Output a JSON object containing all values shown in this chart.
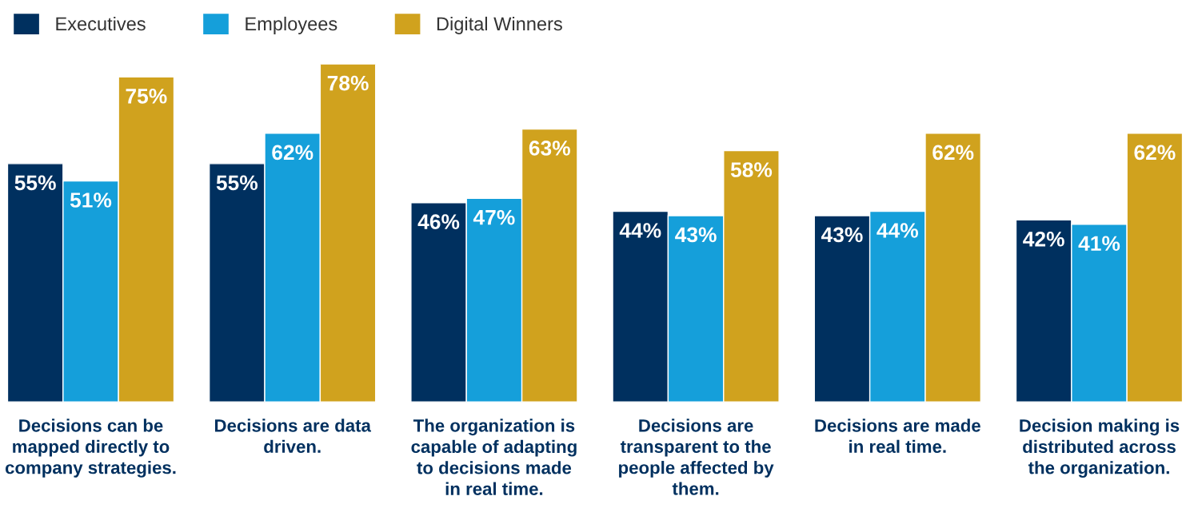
{
  "chart_data": {
    "type": "bar",
    "categories": [
      "Decisions can be mapped directly to company strategies.",
      "Decisions are data driven.",
      "The organization is capable of adapting to decisions made in real time.",
      "Decisions are transparent to the people affected by them.",
      "Decisions are made in real time.",
      "Decision making is distributed across the organization."
    ],
    "series": [
      {
        "name": "Executives",
        "color": "#00305f",
        "values": [
          55,
          55,
          46,
          44,
          43,
          42
        ],
        "value_labels": [
          "55%",
          "55%",
          "46%",
          "44%",
          "43%",
          "42%"
        ]
      },
      {
        "name": "Employees",
        "color": "#159fda",
        "values": [
          51,
          62,
          47,
          43,
          44,
          41
        ],
        "value_labels": [
          "51%",
          "62%",
          "47%",
          "43%",
          "44%",
          "41%"
        ]
      },
      {
        "name": "Digital Winners",
        "color": "#d0a21e",
        "values": [
          75,
          78,
          63,
          58,
          62,
          62
        ],
        "value_labels": [
          "75%",
          "78%",
          "63%",
          "58%",
          "62%",
          "62%"
        ]
      }
    ],
    "legend": "top left"
  }
}
